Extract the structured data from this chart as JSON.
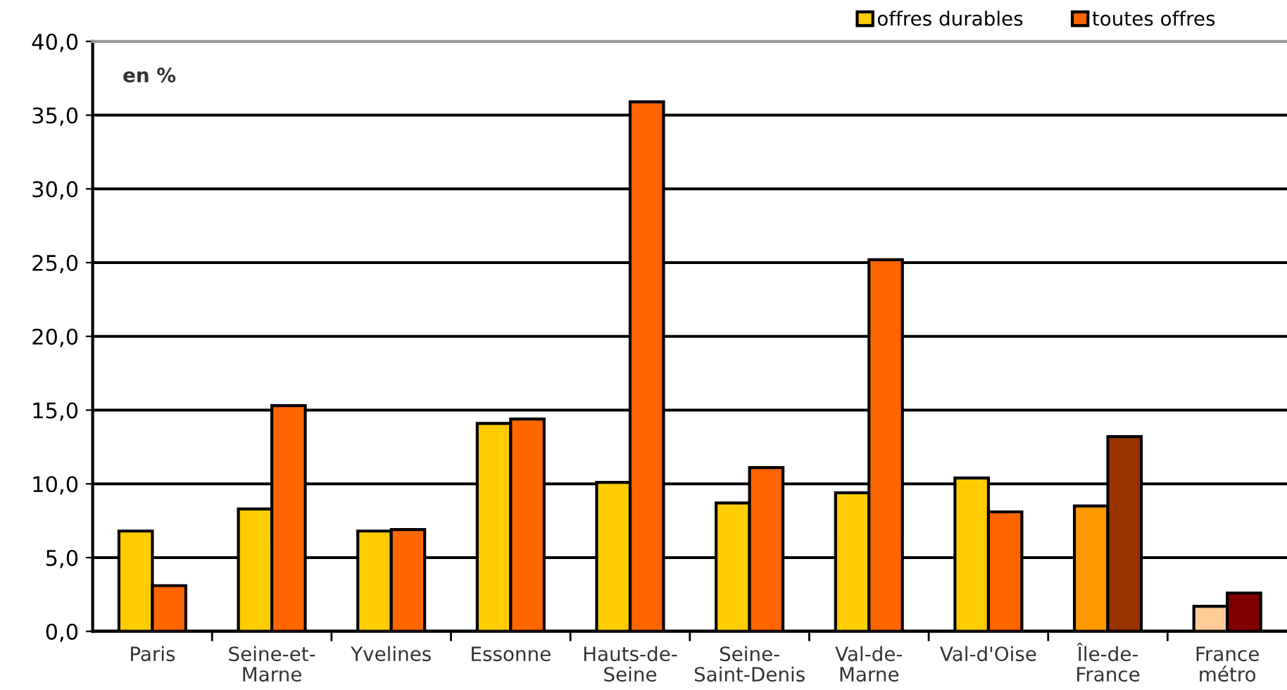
{
  "chart_data": {
    "type": "bar",
    "categories": [
      "Paris",
      "Seine-et-\nMarne",
      "Yvelines",
      "Essonne",
      "Hauts-de-\nSeine",
      "Seine-\nSaint-Denis",
      "Val-de-\nMarne",
      "Val-d'Oise",
      "Île-de-\nFrance",
      "France\nmétro"
    ],
    "series": [
      {
        "name": "offres durables",
        "color": "#ffcc00",
        "colors": [
          "#ffcc00",
          "#ffcc00",
          "#ffcc00",
          "#ffcc00",
          "#ffcc00",
          "#ffcc00",
          "#ffcc00",
          "#ffcc00",
          "#ff9900",
          "#ffcc99"
        ],
        "values": [
          6.8,
          8.3,
          6.8,
          14.1,
          10.1,
          8.7,
          9.4,
          10.4,
          8.5,
          1.7
        ]
      },
      {
        "name": "toutes offres",
        "color": "#ff6600",
        "colors": [
          "#ff6600",
          "#ff6600",
          "#ff6600",
          "#ff6600",
          "#ff6600",
          "#ff6600",
          "#ff6600",
          "#ff6600",
          "#993300",
          "#800000"
        ],
        "values": [
          3.1,
          15.3,
          6.9,
          14.4,
          35.9,
          11.1,
          25.2,
          8.1,
          13.2,
          2.6
        ]
      }
    ],
    "annotations": [
      "en %"
    ],
    "ylim": [
      0,
      40
    ],
    "yticks": [
      {
        "value": 0,
        "label": "0,0"
      },
      {
        "value": 5,
        "label": "5,0"
      },
      {
        "value": 10,
        "label": "10,0"
      },
      {
        "value": 15,
        "label": "15,0"
      },
      {
        "value": 20,
        "label": "20,0"
      },
      {
        "value": 25,
        "label": "25,0"
      },
      {
        "value": 30,
        "label": "30,0"
      },
      {
        "value": 35,
        "label": "35,0"
      },
      {
        "value": 40,
        "label": "40,0"
      }
    ],
    "grid": "y",
    "legend": "top right"
  }
}
